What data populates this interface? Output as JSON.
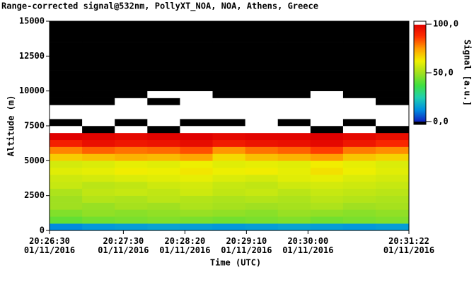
{
  "chart_data": {
    "type": "heatmap",
    "title": "Range-corrected signal@532nm, PollyXT_NOA, NOA, Athens, Greece",
    "x_label": "Time (UTC)",
    "y_label": "Altitude (m)",
    "x_bins": [
      73590,
      73616.5,
      73643,
      73669.5,
      73696,
      73722.5,
      73749,
      73775.5,
      73802,
      73828.5,
      73855,
      73882
    ],
    "y_bins": [
      0,
      500,
      1000,
      1500,
      2000,
      2500,
      3000,
      3500,
      4000,
      4500,
      5000,
      5500,
      6000,
      6500,
      7000,
      7500,
      8000,
      8500,
      9000,
      9500,
      10000,
      10500,
      11000,
      11500,
      12000,
      12500,
      13000,
      13500,
      14000,
      14500,
      15000
    ],
    "values": [
      [
        12,
        42,
        46,
        50,
        50,
        52,
        56,
        57,
        60,
        58,
        68,
        78,
        92,
        100,
        110,
        -5,
        110,
        110,
        -5,
        -5,
        -5,
        -5,
        -5,
        -5,
        -5,
        -5,
        -5,
        -5,
        -5,
        -5
      ],
      [
        14,
        44,
        48,
        49,
        53,
        55,
        54,
        58,
        61,
        59,
        70,
        82,
        96,
        99,
        -5,
        110,
        110,
        110,
        -5,
        -5,
        -5,
        -5,
        -5,
        -5,
        -5,
        -5,
        -5,
        -5,
        -5,
        -5
      ],
      [
        15,
        45,
        47,
        51,
        52,
        56,
        55,
        59,
        63,
        61,
        72,
        80,
        94,
        98,
        110,
        -5,
        110,
        110,
        110,
        -5,
        -5,
        -5,
        -5,
        -5,
        -5,
        -5,
        -5,
        -5,
        -5,
        -5
      ],
      [
        16,
        46,
        48,
        50,
        54,
        55,
        57,
        60,
        62,
        60,
        71,
        81,
        95,
        99,
        -5,
        110,
        110,
        110,
        -5,
        110,
        -5,
        -5,
        -5,
        -5,
        -5,
        -5,
        -5,
        -5,
        -5,
        -5
      ],
      [
        15,
        45,
        49,
        52,
        53,
        57,
        58,
        61,
        64,
        62,
        74,
        84,
        97,
        100,
        110,
        -5,
        110,
        110,
        110,
        110,
        -5,
        -5,
        -5,
        -5,
        -5,
        -5,
        -5,
        -5,
        -5,
        -5
      ],
      [
        14,
        44,
        48,
        51,
        52,
        55,
        56,
        59,
        62,
        60,
        66,
        76,
        93,
        98,
        110,
        -5,
        110,
        110,
        110,
        -5,
        -5,
        -5,
        -5,
        -5,
        -5,
        -5,
        -5,
        -5,
        -5,
        -5
      ],
      [
        15,
        45,
        47,
        50,
        53,
        56,
        55,
        58,
        63,
        61,
        70,
        80,
        95,
        99,
        110,
        110,
        110,
        110,
        110,
        -5,
        -5,
        -5,
        -5,
        -5,
        -5,
        -5,
        -5,
        -5,
        -5,
        -5
      ],
      [
        16,
        46,
        49,
        51,
        52,
        54,
        57,
        60,
        61,
        60,
        72,
        82,
        96,
        99,
        110,
        -5,
        110,
        110,
        110,
        -5,
        -5,
        -5,
        -5,
        -5,
        -5,
        -5,
        -5,
        -5,
        -5,
        -5
      ],
      [
        15,
        44,
        48,
        52,
        54,
        56,
        58,
        61,
        65,
        63,
        75,
        86,
        98,
        100,
        -5,
        110,
        110,
        110,
        110,
        110,
        -5,
        -5,
        -5,
        -5,
        -5,
        -5,
        -5,
        -5,
        -5,
        -5
      ],
      [
        14,
        45,
        47,
        50,
        53,
        55,
        57,
        59,
        62,
        61,
        69,
        79,
        94,
        98,
        110,
        -5,
        110,
        110,
        110,
        -5,
        -5,
        -5,
        -5,
        -5,
        -5,
        -5,
        -5,
        -5,
        -5,
        -5
      ],
      [
        15,
        46,
        48,
        51,
        52,
        54,
        56,
        58,
        60,
        59,
        67,
        77,
        90,
        96,
        -5,
        110,
        110,
        110,
        -5,
        -5,
        -5,
        -5,
        -5,
        -5,
        -5,
        -5,
        -5,
        -5,
        -5,
        -5
      ]
    ],
    "xlim": [
      73590,
      73882
    ],
    "xticks": [
      {
        "value": 73590,
        "label": "20:26:30\n01/11/2016"
      },
      {
        "value": 73650,
        "label": "20:27:30\n01/11/2016"
      },
      {
        "value": 73700,
        "label": "20:28:20\n01/11/2016"
      },
      {
        "value": 73750,
        "label": "20:29:10\n01/11/2016"
      },
      {
        "value": 73800,
        "label": "20:30:00\n01/11/2016"
      },
      {
        "value": 73882,
        "label": "20:31:22\n01/11/2016"
      }
    ],
    "ylim": [
      0,
      15000
    ],
    "yticks": [
      0,
      2500,
      5000,
      7500,
      10000,
      12500,
      15000
    ],
    "colorbar": {
      "label": "Signal [a.u.]",
      "lim": [
        -3,
        103
      ],
      "ticks": [
        {
          "value": 0,
          "label": "0,0"
        },
        {
          "value": 50,
          "label": "50,0"
        },
        {
          "value": 100,
          "label": "100,0"
        }
      ],
      "colors": [
        "#1020c0",
        "#0090e0",
        "#20d0b0",
        "#40e040",
        "#a0e020",
        "#f0f000",
        "#ffa000",
        "#ff3000",
        "#e00000"
      ],
      "under_color": "#000000",
      "over_color": "#ffffff"
    }
  }
}
